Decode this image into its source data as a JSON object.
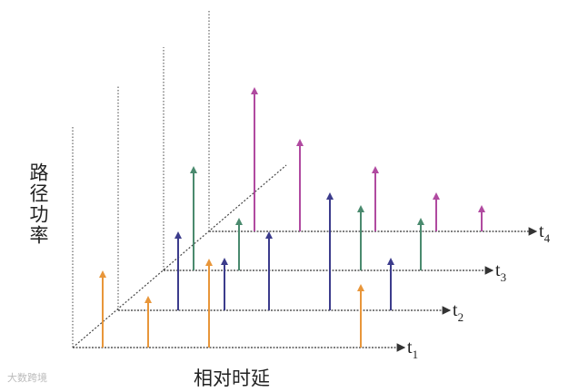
{
  "y_axis_label": "路径功率",
  "x_axis_label": "相对时延",
  "time_axes": [
    {
      "base": "t",
      "sub": "1"
    },
    {
      "base": "t",
      "sub": "2"
    },
    {
      "base": "t",
      "sub": "3"
    },
    {
      "base": "t",
      "sub": "4"
    }
  ],
  "watermark": "大数跨境"
}
